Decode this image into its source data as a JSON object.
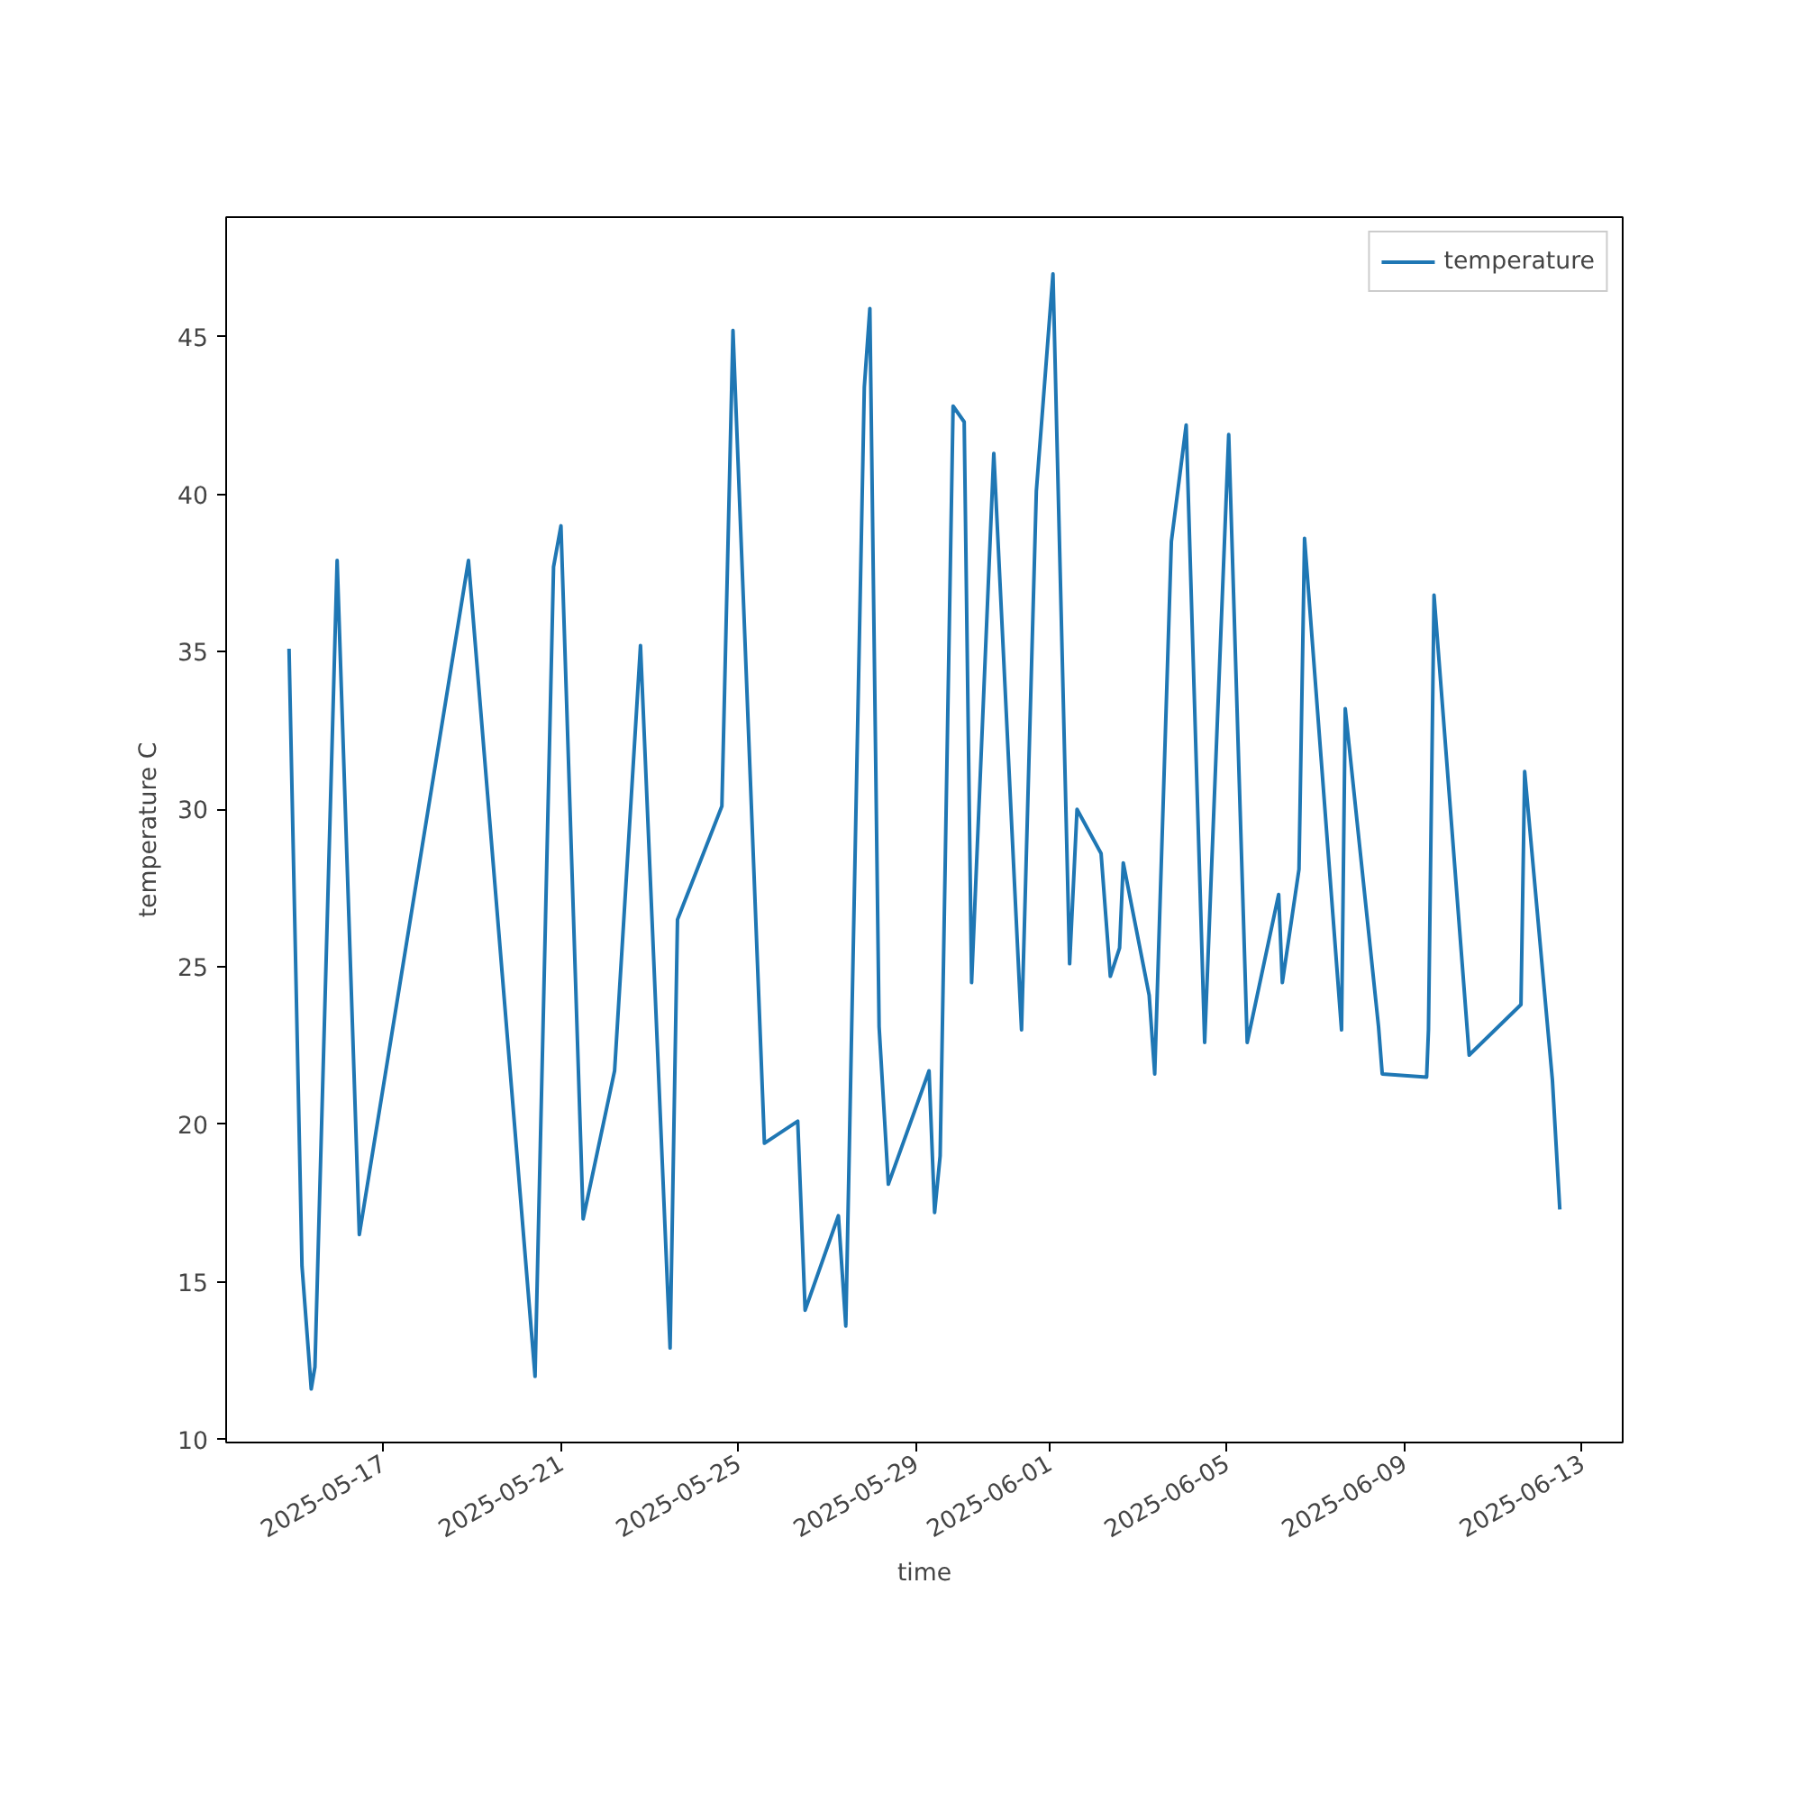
{
  "chart_data": {
    "type": "line",
    "xlabel": "time",
    "ylabel": "temperature C",
    "x": [
      "2025-05-14T21:00",
      "2025-05-15T04:00",
      "2025-05-15T09:00",
      "2025-05-15T11:00",
      "2025-05-15T23:00",
      "2025-05-16T11:00",
      "2025-05-18T22:00",
      "2025-05-20T10:00",
      "2025-05-20T20:00",
      "2025-05-21T00:00",
      "2025-05-21T12:00",
      "2025-05-22T05:00",
      "2025-05-22T19:00",
      "2025-05-23T11:00",
      "2025-05-23T15:00",
      "2025-05-24T15:00",
      "2025-05-24T21:00",
      "2025-05-25T14:00",
      "2025-05-26T08:00",
      "2025-05-26T12:00",
      "2025-05-27T06:00",
      "2025-05-27T10:00",
      "2025-05-27T20:00",
      "2025-05-27T23:00",
      "2025-05-28T04:00",
      "2025-05-28T09:00",
      "2025-05-29T07:00",
      "2025-05-29T10:00",
      "2025-05-29T13:00",
      "2025-05-29T20:00",
      "2025-05-30T02:00",
      "2025-05-30T06:00",
      "2025-05-30T18:00",
      "2025-05-31T09:00",
      "2025-05-31T17:00",
      "2025-06-01T02:00",
      "2025-06-01T11:00",
      "2025-06-01T15:00",
      "2025-06-02T04:00",
      "2025-06-02T09:00",
      "2025-06-02T14:00",
      "2025-06-02T16:00",
      "2025-06-03T06:00",
      "2025-06-03T09:00",
      "2025-06-03T18:00",
      "2025-06-04T02:00",
      "2025-06-04T12:00",
      "2025-06-05T01:00",
      "2025-06-05T11:00",
      "2025-06-06T04:00",
      "2025-06-06T06:00",
      "2025-06-06T15:00",
      "2025-06-06T18:00",
      "2025-06-07T14:00",
      "2025-06-07T16:00",
      "2025-06-08T10:00",
      "2025-06-08T12:00",
      "2025-06-09T12:00",
      "2025-06-09T13:00",
      "2025-06-09T16:00",
      "2025-06-10T11:00",
      "2025-06-11T15:00",
      "2025-06-11T17:00",
      "2025-06-12T08:00",
      "2025-06-12T12:00"
    ],
    "series": [
      {
        "name": "temperature",
        "color": "#1f77b4",
        "values": [
          35.1,
          15.5,
          11.6,
          12.3,
          37.9,
          16.5,
          37.9,
          12.0,
          37.7,
          39.0,
          17.0,
          21.7,
          35.2,
          12.9,
          26.5,
          30.1,
          45.2,
          19.4,
          20.1,
          14.1,
          17.1,
          13.6,
          43.4,
          45.9,
          23.1,
          18.1,
          21.7,
          17.2,
          19.0,
          42.8,
          42.3,
          24.5,
          41.3,
          23.0,
          40.1,
          47.0,
          25.1,
          30.0,
          28.6,
          24.7,
          25.6,
          28.3,
          24.1,
          21.6,
          38.5,
          42.2,
          22.6,
          41.9,
          22.6,
          27.3,
          24.5,
          28.1,
          38.6,
          23.0,
          33.2,
          23.1,
          21.6,
          21.5,
          23.0,
          36.8,
          22.2,
          23.8,
          31.2,
          21.4,
          17.3
        ]
      }
    ],
    "xlim": [
      "2025-05-13T11:00",
      "2025-06-13T22:00"
    ],
    "xticks": [
      "2025-05-17",
      "2025-05-21",
      "2025-05-25",
      "2025-05-29",
      "2025-06-01",
      "2025-06-05",
      "2025-06-09",
      "2025-06-13"
    ],
    "ylim": [
      9.9,
      48.8
    ],
    "yticks": [
      10,
      15,
      20,
      25,
      30,
      35,
      40,
      45
    ],
    "legend": "top right",
    "grid": false,
    "marker": "none",
    "line_style": "solid"
  }
}
